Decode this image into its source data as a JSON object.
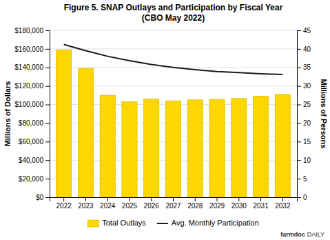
{
  "chart_data": {
    "type": "bar",
    "title": "Figure 5. SNAP Outlays and Participation by Fiscal Year\n(CBO May 2022)",
    "categories": [
      "2022",
      "2023",
      "2024",
      "2025",
      "2026",
      "2027",
      "2028",
      "2029",
      "2030",
      "2031",
      "2032"
    ],
    "series": [
      {
        "name": "Total Outlays",
        "type": "bar",
        "color": "#FFD700",
        "values": [
          159000,
          139000,
          110000,
          103000,
          106000,
          104000,
          105000,
          105500,
          106500,
          109000,
          111000
        ]
      },
      {
        "name": "Avg. Monthly Participation",
        "type": "line",
        "color": "#1a1a1a",
        "axis": "y2",
        "values": [
          41.2,
          39.5,
          38.0,
          36.8,
          35.8,
          35.0,
          34.4,
          33.9,
          33.6,
          33.3,
          33.1
        ]
      }
    ],
    "y_label": "Millions of Dollars",
    "y2_label": "Millions of Persons",
    "ylim": [
      0,
      180000
    ],
    "yticks": [
      {
        "value": 0,
        "label": "$0"
      },
      {
        "value": 20000,
        "label": "$20,000"
      },
      {
        "value": 40000,
        "label": "$40,000"
      },
      {
        "value": 60000,
        "label": "$60,000"
      },
      {
        "value": 80000,
        "label": "$80,000"
      },
      {
        "value": 100000,
        "label": "$100,000"
      },
      {
        "value": 120000,
        "label": "$120,000"
      },
      {
        "value": 140000,
        "label": "$140,000"
      },
      {
        "value": 160000,
        "label": "$160,000"
      },
      {
        "value": 180000,
        "label": "$180,000"
      }
    ],
    "y2lim": [
      0,
      45
    ],
    "y2ticks": [
      0,
      5,
      10,
      15,
      20,
      25,
      30,
      35,
      40,
      45
    ],
    "grid": true,
    "legend": "bottom",
    "annotations": [
      "farmdoc",
      "DAILY"
    ]
  }
}
